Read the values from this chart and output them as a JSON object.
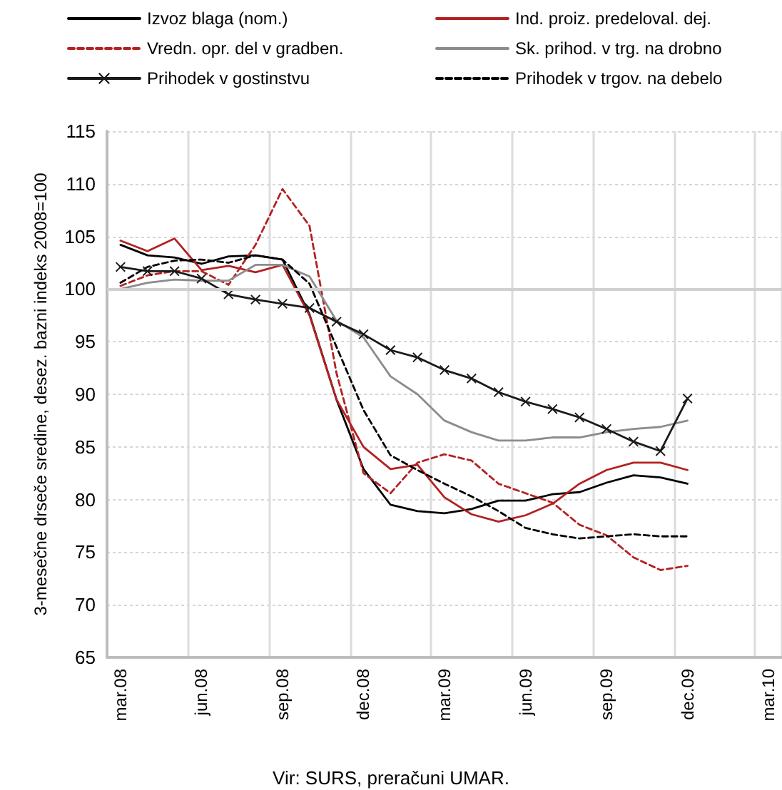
{
  "chart_data": {
    "type": "line",
    "ylabel": "3-mesečne drseče sredine, desez. bazni indeks 2008=100",
    "annotations": [
      "Vir: SURS, preračuni UMAR."
    ],
    "categories": [
      "mar.08",
      null,
      null,
      "jun.08",
      null,
      null,
      "sep.08",
      null,
      null,
      "dec.08",
      null,
      null,
      "mar.09",
      null,
      null,
      "jun.09",
      null,
      null,
      "sep.09",
      null,
      null,
      "dec.09",
      null,
      null,
      "mar.10"
    ],
    "ylim": [
      65,
      115
    ],
    "yticks": [
      65,
      70,
      75,
      80,
      85,
      90,
      95,
      100,
      105,
      110,
      115
    ],
    "grid": true,
    "legend": "top",
    "marker": "none",
    "line_style": "solid",
    "ref_lines": [
      {
        "axis": "y",
        "value": 100,
        "color": "#d0d0d0"
      }
    ],
    "series": [
      {
        "name": "Izvoz blaga (nom.)",
        "color": "#000000",
        "values": [
          104.2,
          103.2,
          103.0,
          102.4,
          103.1,
          103.2,
          102.8,
          97.6,
          89.5,
          82.9,
          79.5,
          78.9,
          78.7,
          79.1,
          79.9,
          79.9,
          80.5,
          80.7,
          81.6,
          82.3,
          82.1,
          81.5,
          null,
          null,
          null
        ]
      },
      {
        "name": "Ind. proiz. predeloval. dej.",
        "color": "#b22222",
        "values": [
          104.6,
          103.6,
          104.8,
          101.8,
          102.2,
          101.6,
          102.3,
          97.5,
          89.5,
          85.0,
          82.9,
          83.3,
          80.2,
          78.6,
          77.9,
          78.5,
          79.6,
          81.5,
          82.8,
          83.5,
          83.5,
          82.8,
          null,
          null,
          null
        ]
      },
      {
        "name": "Vredn. opr. del v gradben.",
        "color": "#b22222",
        "line_style": "dashed",
        "values": [
          100.3,
          101.3,
          101.7,
          101.7,
          100.4,
          104.2,
          109.5,
          106.0,
          92.0,
          82.5,
          80.6,
          83.5,
          84.3,
          83.7,
          81.5,
          80.6,
          79.7,
          77.6,
          76.6,
          74.5,
          73.3,
          73.7,
          null,
          null,
          null
        ]
      },
      {
        "name": "Sk. prihod. v trg. na drobno",
        "color": "#8c8c8c",
        "values": [
          100.0,
          100.6,
          100.9,
          100.8,
          100.8,
          102.3,
          102.3,
          101.2,
          97.0,
          95.4,
          91.7,
          90.0,
          87.5,
          86.4,
          85.6,
          85.6,
          85.9,
          85.9,
          86.4,
          86.7,
          86.9,
          87.5,
          null,
          null,
          null
        ]
      },
      {
        "name": "Prihodek v gostinstvu",
        "color": "#1a1a1a",
        "marker": "cross",
        "values": [
          102.1,
          101.7,
          101.7,
          101.0,
          99.5,
          99.0,
          98.6,
          98.2,
          96.9,
          95.7,
          94.2,
          93.5,
          92.3,
          91.5,
          90.2,
          89.3,
          88.6,
          87.8,
          86.7,
          85.5,
          84.6,
          89.6,
          null,
          null,
          null
        ]
      },
      {
        "name": "Prihodek v trgov. na debelo",
        "color": "#000000",
        "line_style": "dashed",
        "values": [
          100.6,
          102.1,
          102.7,
          102.8,
          102.5,
          103.2,
          102.8,
          100.5,
          94.5,
          88.5,
          84.2,
          82.8,
          81.5,
          80.3,
          78.9,
          77.3,
          76.7,
          76.3,
          76.5,
          76.7,
          76.5,
          76.5,
          null,
          null,
          null
        ]
      }
    ]
  }
}
